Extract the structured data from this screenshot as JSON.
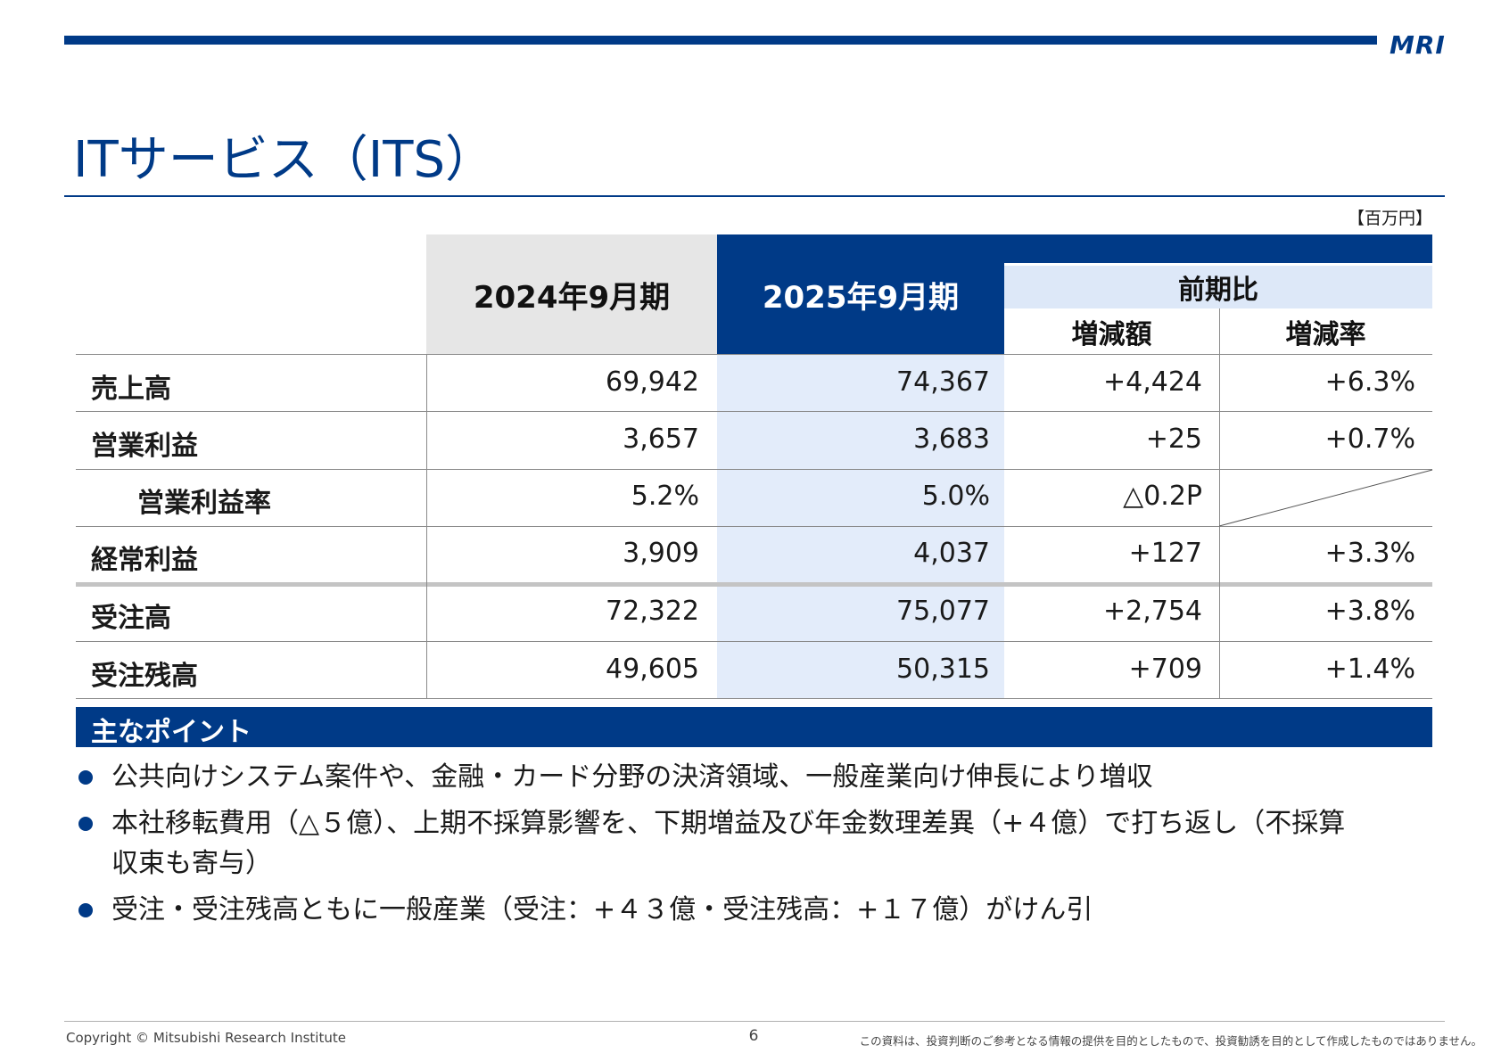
{
  "header": {
    "logo_text": "MRI",
    "title": "ITサービス（ITS）",
    "unit": "【百万円】"
  },
  "table": {
    "col_2024": "2024年9月期",
    "col_2025": "2025年9月期",
    "col_compare": "前期比",
    "col_diff": "増減額",
    "col_rate": "増減率",
    "rows": [
      {
        "label": "売上高",
        "v2024": "69,942",
        "v2025": "74,367",
        "diff": "+4,424",
        "rate": "+6.3%"
      },
      {
        "label": "営業利益",
        "v2024": "3,657",
        "v2025": "3,683",
        "diff": "+25",
        "rate": "+0.7%"
      },
      {
        "label": "営業利益率",
        "v2024": "5.2%",
        "v2025": "5.0%",
        "diff": "△0.2P",
        "rate": ""
      },
      {
        "label": "経常利益",
        "v2024": "3,909",
        "v2025": "4,037",
        "diff": "+127",
        "rate": "+3.3%"
      },
      {
        "label": "受注高",
        "v2024": "72,322",
        "v2025": "75,077",
        "diff": "+2,754",
        "rate": "+3.8%"
      },
      {
        "label": "受注残高",
        "v2024": "49,605",
        "v2025": "50,315",
        "diff": "+709",
        "rate": "+1.4%"
      }
    ]
  },
  "points": {
    "title": "主なポイント",
    "items": [
      "公共向けシステム案件や、金融・カード分野の決済領域、一般産業向け伸長により増収",
      "本社移転費用（△５億）、上期不採算影響を、下期増益及び年金数理差異（+４億）で打ち返し（不採算",
      "収束も寄与）",
      "受注・受注残高ともに一般産業（受注：+４３億・受注残高：+１７億）がけん引"
    ]
  },
  "footer": {
    "copyright": "Copyright © Mitsubishi Research Institute",
    "page": "6",
    "disclaimer": "この資料は、投資判断のご参考となる情報の提供を目的としたもので、投資勧誘を目的として作成したものではありません。"
  },
  "colors": {
    "brand": "#003a87",
    "highlight_col": "#e3ecfa",
    "header_gray": "#e6e6e6"
  }
}
